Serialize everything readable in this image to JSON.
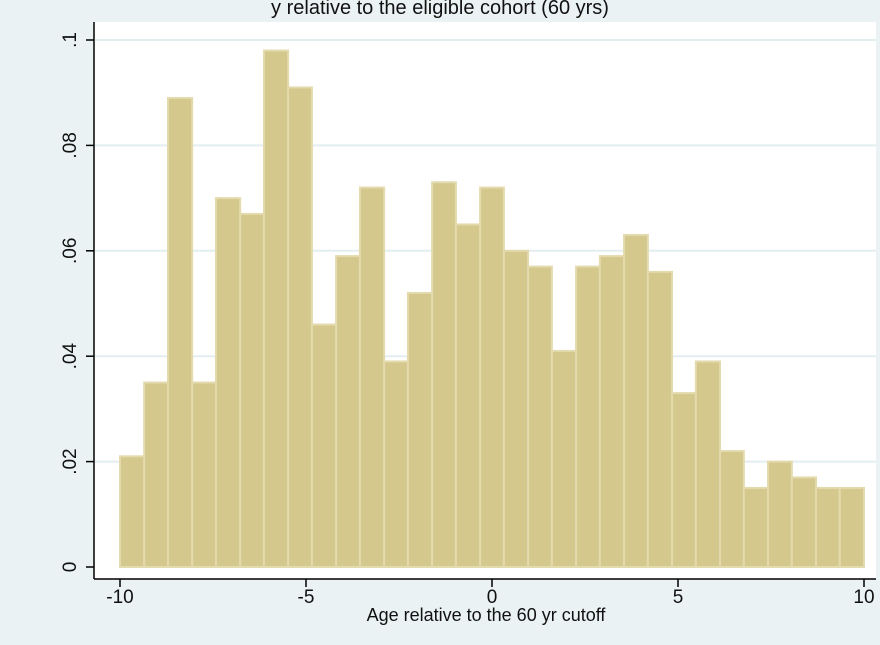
{
  "header_fragment": "y relative to the eligible cohort (60 yrs)",
  "chart_data": {
    "type": "bar",
    "subtype": "histogram",
    "xlabel": "Age relative to the 60 yr cutoff",
    "ylabel": "",
    "xlim": [
      -10,
      10
    ],
    "ylim": [
      0,
      0.1
    ],
    "x_ticks": [
      -10,
      -5,
      0,
      5,
      10
    ],
    "x_tick_labels": [
      "-10",
      "-5",
      "0",
      "5",
      "10"
    ],
    "y_ticks": [
      0,
      0.02,
      0.04,
      0.06,
      0.08,
      0.1
    ],
    "y_tick_labels": [
      "0",
      ".02",
      ".04",
      ".06",
      ".08",
      ".1"
    ],
    "grid": true,
    "bin_edges": [
      -10,
      -9.35,
      -8.71,
      -8.06,
      -7.42,
      -6.77,
      -6.13,
      -5.48,
      -4.84,
      -4.19,
      -3.55,
      -2.9,
      -2.26,
      -1.61,
      -0.97,
      -0.32,
      0.32,
      0.97,
      1.61,
      2.26,
      2.9,
      3.55,
      4.19,
      4.84,
      5.48,
      6.13,
      6.77,
      7.42,
      8.06,
      8.71,
      9.35,
      10
    ],
    "values": [
      0.021,
      0.035,
      0.089,
      0.035,
      0.07,
      0.067,
      0.098,
      0.091,
      0.046,
      0.059,
      0.072,
      0.039,
      0.052,
      0.073,
      0.065,
      0.072,
      0.06,
      0.057,
      0.041,
      0.057,
      0.059,
      0.063,
      0.056,
      0.033,
      0.039,
      0.022,
      0.015,
      0.02,
      0.017,
      0.015,
      0.015
    ],
    "colors": {
      "bar_fill": "#d5c88c",
      "bar_edge": "#e3daae",
      "plot_bg": "#ffffff",
      "outer_bg": "#eaf2f3",
      "grid": "#e3eef0",
      "axis": "#000000"
    }
  }
}
